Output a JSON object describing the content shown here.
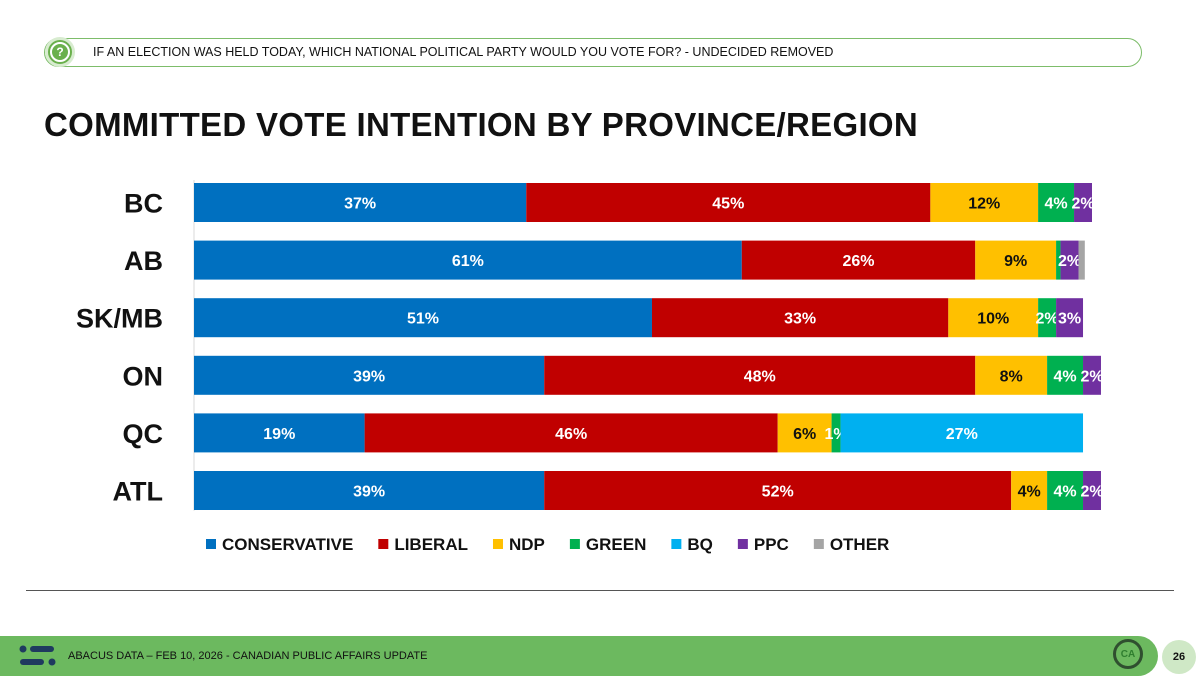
{
  "header": {
    "question": "IF AN ELECTION WAS HELD TODAY, WHICH NATIONAL POLITICAL PARTY WOULD YOU VOTE FOR? - UNDECIDED REMOVED",
    "question_icon": "question-mark-icon"
  },
  "title": "COMMITTED VOTE INTENTION BY PROVINCE/REGION",
  "footer": {
    "text": "ABACUS DATA – FEB 10, 2026 - CANADIAN PUBLIC AFFAIRS UPDATE",
    "badge": "CA",
    "page_number": "26"
  },
  "chart_data": {
    "type": "bar",
    "orientation": "horizontal",
    "stacked": true,
    "categories": [
      "BC",
      "AB",
      "SK/MB",
      "ON",
      "QC",
      "ATL"
    ],
    "xlim": [
      0,
      100
    ],
    "legend_position": "bottom",
    "grid": false,
    "series": [
      {
        "name": "CONSERVATIVE",
        "color": "#0070c0",
        "values": [
          37,
          61,
          51,
          39,
          19,
          39
        ]
      },
      {
        "name": "LIBERAL",
        "color": "#c00000",
        "values": [
          45,
          26,
          33,
          48,
          46,
          52
        ]
      },
      {
        "name": "NDP",
        "color": "#ffc000",
        "values": [
          12,
          9,
          10,
          8,
          6,
          4
        ]
      },
      {
        "name": "GREEN",
        "color": "#00b050",
        "values": [
          4,
          0.5,
          2,
          4,
          1,
          4
        ]
      },
      {
        "name": "BQ",
        "color": "#00b0f0",
        "values": [
          0,
          0,
          0,
          0,
          27,
          0
        ]
      },
      {
        "name": "PPC",
        "color": "#7030a0",
        "values": [
          2,
          2,
          3,
          2,
          0,
          2
        ]
      },
      {
        "name": "OTHER",
        "color": "#a5a5a5",
        "values": [
          0,
          0.7,
          0,
          0,
          0,
          0
        ]
      }
    ],
    "data_labels": [
      [
        "37%",
        "45%",
        "12%",
        "4%",
        "",
        "2%",
        ""
      ],
      [
        "61%",
        "26%",
        "9%",
        "",
        "",
        "2%",
        ""
      ],
      [
        "51%",
        "33%",
        "10%",
        "2%",
        "",
        "3%",
        ""
      ],
      [
        "39%",
        "48%",
        "8%",
        "4%",
        "",
        "2%",
        ""
      ],
      [
        "19%",
        "46%",
        "6%",
        "1%",
        "27%",
        "",
        ""
      ],
      [
        "39%",
        "52%",
        "4%",
        "4%",
        "",
        "2%",
        ""
      ]
    ]
  }
}
